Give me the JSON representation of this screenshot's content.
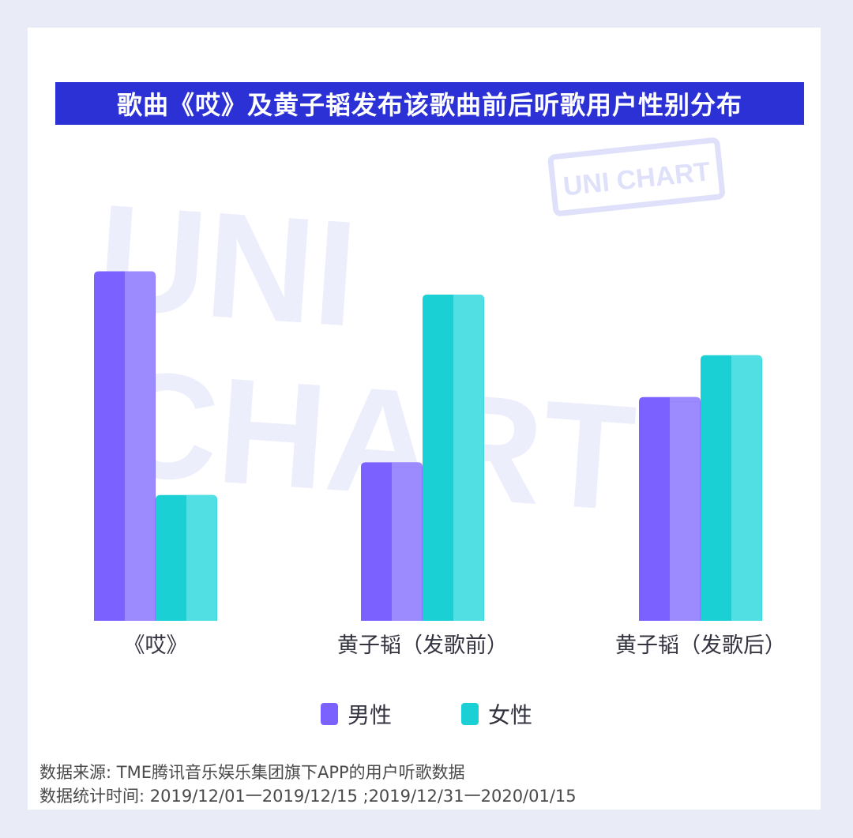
{
  "chart_data": {
    "type": "bar",
    "title": "歌曲《哎》及黄子韬发布该歌曲前后听歌用户性别分布",
    "categories": [
      "《哎》",
      "黄子韬（发歌前）",
      "黄子韬（发歌后）"
    ],
    "series": [
      {
        "name": "男性",
        "values": [
          75,
          34,
          48
        ],
        "color": "#7b61ff"
      },
      {
        "name": "女性",
        "values": [
          27,
          70,
          57
        ],
        "color": "#1bd0d4"
      }
    ],
    "xlabel": "",
    "ylabel": "",
    "ylim": [
      0,
      100
    ],
    "grid": false,
    "y_axis_visible": false,
    "legend_position": "bottom"
  },
  "watermark": {
    "large_lines": [
      "UNI",
      "CHART"
    ],
    "stamp": "UNI CHART"
  },
  "footnotes": {
    "source": "数据来源: TME腾讯音乐娱乐集团旗下APP的用户听歌数据",
    "period": "数据统计时间: 2019/12/01一2019/12/15 ;2019/12/31一2020/01/15"
  }
}
